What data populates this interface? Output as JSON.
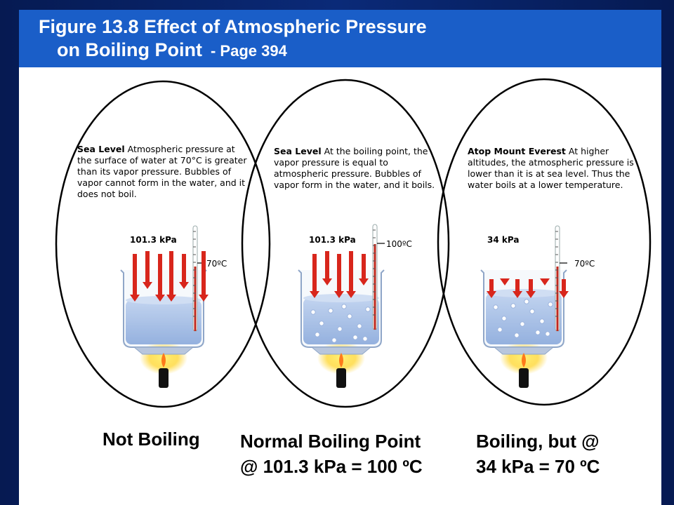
{
  "header": {
    "title_line1": "Figure 13.8 Effect of Atmospheric Pressure",
    "title_line2": "on Boiling Point",
    "page_ref": "- Page 394"
  },
  "panels": [
    {
      "heading": "Sea Level",
      "text": "Atmospheric pressure at the surface of water at 70°C is greater than its vapor pressure. Bubbles of vapor cannot form in the water, and it does not boil.",
      "pressure_label": "101.3 kPa",
      "temp_label": "70ºC",
      "caption_line1": "Not Boiling",
      "caption_line2": ""
    },
    {
      "heading": "Sea Level",
      "text": "At the boiling point, the vapor pressure is equal to atmospheric pressure. Bubbles of vapor form in the water, and it boils.",
      "pressure_label": "101.3 kPa",
      "temp_label": "100ºC",
      "caption_line1": "Normal Boiling Point",
      "caption_line2": "@ 101.3 kPa = 100 ºC"
    },
    {
      "heading": "Atop Mount Everest",
      "text": "At higher altitudes, the atmospheric pressure is lower than it is at sea level. Thus the water boils at a lower temperature.",
      "pressure_label": "34 kPa",
      "temp_label": "70ºC",
      "caption_line1": "Boiling, but @",
      "caption_line2": "34 kPa = 70 ºC"
    }
  ],
  "colors": {
    "banner": "#1a5ec8",
    "arrow": "#d8261c",
    "water": "#8fb0e0",
    "flame": "#ffd21a"
  }
}
